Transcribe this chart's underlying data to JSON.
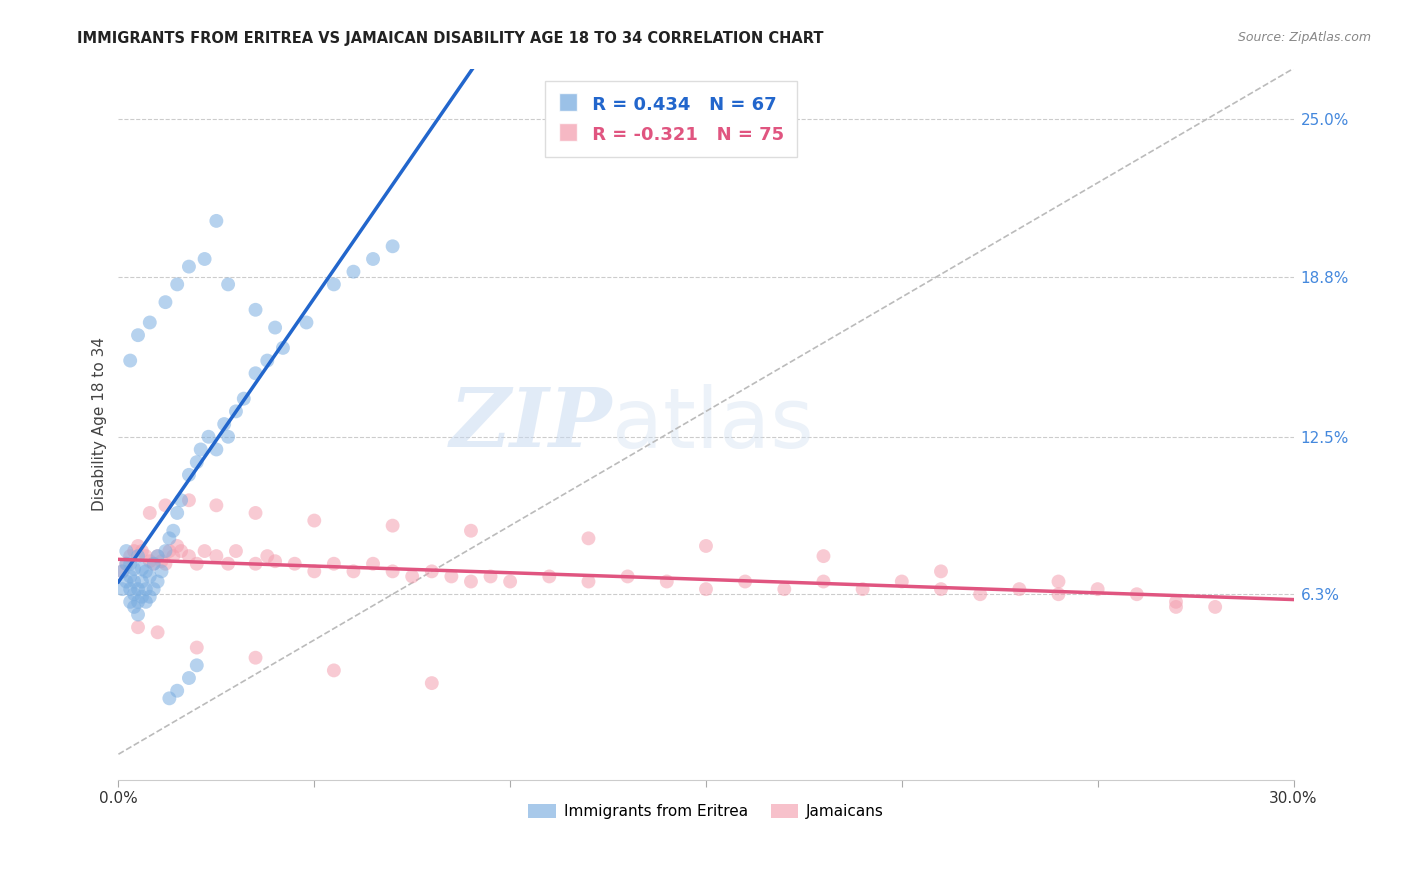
{
  "title": "IMMIGRANTS FROM ERITREA VS JAMAICAN DISABILITY AGE 18 TO 34 CORRELATION CHART",
  "source": "Source: ZipAtlas.com",
  "ylabel": "Disability Age 18 to 34",
  "x_min": 0.0,
  "x_max": 0.3,
  "y_min": -0.01,
  "y_max": 0.27,
  "y_tick_labels_right": [
    "25.0%",
    "18.8%",
    "12.5%",
    "6.3%"
  ],
  "y_tick_vals_right": [
    0.25,
    0.188,
    0.125,
    0.063
  ],
  "grid_color": "#cccccc",
  "background_color": "#ffffff",
  "blue_color": "#7aade0",
  "blue_line_color": "#2266cc",
  "pink_color": "#f4a0b0",
  "pink_line_color": "#e05580",
  "legend_R_blue": "R = 0.434",
  "legend_N_blue": "N = 67",
  "legend_R_pink": "R = -0.321",
  "legend_N_pink": "N = 75",
  "legend_label_blue": "Immigrants from Eritrea",
  "legend_label_pink": "Jamaicans",
  "watermark_zip": "ZIP",
  "watermark_atlas": "atlas",
  "blue_scatter_x": [
    0.001,
    0.001,
    0.002,
    0.002,
    0.002,
    0.003,
    0.003,
    0.003,
    0.003,
    0.004,
    0.004,
    0.004,
    0.004,
    0.005,
    0.005,
    0.005,
    0.005,
    0.006,
    0.006,
    0.006,
    0.007,
    0.007,
    0.007,
    0.008,
    0.008,
    0.009,
    0.009,
    0.01,
    0.01,
    0.011,
    0.012,
    0.013,
    0.014,
    0.015,
    0.016,
    0.018,
    0.02,
    0.021,
    0.023,
    0.025,
    0.027,
    0.028,
    0.03,
    0.032,
    0.035,
    0.038,
    0.042,
    0.048,
    0.055,
    0.06,
    0.065,
    0.07,
    0.003,
    0.005,
    0.008,
    0.012,
    0.015,
    0.018,
    0.022,
    0.028,
    0.035,
    0.04,
    0.025,
    0.02,
    0.018,
    0.015,
    0.013
  ],
  "blue_scatter_y": [
    0.065,
    0.072,
    0.068,
    0.075,
    0.08,
    0.06,
    0.065,
    0.07,
    0.075,
    0.058,
    0.063,
    0.068,
    0.073,
    0.055,
    0.06,
    0.065,
    0.078,
    0.062,
    0.068,
    0.073,
    0.06,
    0.065,
    0.072,
    0.062,
    0.07,
    0.065,
    0.075,
    0.068,
    0.078,
    0.072,
    0.08,
    0.085,
    0.088,
    0.095,
    0.1,
    0.11,
    0.115,
    0.12,
    0.125,
    0.12,
    0.13,
    0.125,
    0.135,
    0.14,
    0.15,
    0.155,
    0.16,
    0.17,
    0.185,
    0.19,
    0.195,
    0.2,
    0.155,
    0.165,
    0.17,
    0.178,
    0.185,
    0.192,
    0.195,
    0.185,
    0.175,
    0.168,
    0.21,
    0.035,
    0.03,
    0.025,
    0.022
  ],
  "pink_scatter_x": [
    0.001,
    0.002,
    0.003,
    0.004,
    0.005,
    0.006,
    0.007,
    0.008,
    0.009,
    0.01,
    0.011,
    0.012,
    0.013,
    0.014,
    0.015,
    0.016,
    0.018,
    0.02,
    0.022,
    0.025,
    0.028,
    0.03,
    0.035,
    0.038,
    0.04,
    0.045,
    0.05,
    0.055,
    0.06,
    0.065,
    0.07,
    0.075,
    0.08,
    0.085,
    0.09,
    0.095,
    0.1,
    0.11,
    0.12,
    0.13,
    0.14,
    0.15,
    0.16,
    0.17,
    0.18,
    0.19,
    0.2,
    0.21,
    0.22,
    0.23,
    0.24,
    0.25,
    0.26,
    0.27,
    0.28,
    0.008,
    0.012,
    0.018,
    0.025,
    0.035,
    0.05,
    0.07,
    0.09,
    0.12,
    0.15,
    0.18,
    0.21,
    0.24,
    0.27,
    0.005,
    0.01,
    0.02,
    0.035,
    0.055,
    0.08
  ],
  "pink_scatter_y": [
    0.072,
    0.075,
    0.078,
    0.08,
    0.082,
    0.08,
    0.078,
    0.076,
    0.075,
    0.078,
    0.076,
    0.075,
    0.08,
    0.078,
    0.082,
    0.08,
    0.078,
    0.075,
    0.08,
    0.078,
    0.075,
    0.08,
    0.075,
    0.078,
    0.076,
    0.075,
    0.072,
    0.075,
    0.072,
    0.075,
    0.072,
    0.07,
    0.072,
    0.07,
    0.068,
    0.07,
    0.068,
    0.07,
    0.068,
    0.07,
    0.068,
    0.065,
    0.068,
    0.065,
    0.068,
    0.065,
    0.068,
    0.065,
    0.063,
    0.065,
    0.063,
    0.065,
    0.063,
    0.06,
    0.058,
    0.095,
    0.098,
    0.1,
    0.098,
    0.095,
    0.092,
    0.09,
    0.088,
    0.085,
    0.082,
    0.078,
    0.072,
    0.068,
    0.058,
    0.05,
    0.048,
    0.042,
    0.038,
    0.033,
    0.028
  ]
}
